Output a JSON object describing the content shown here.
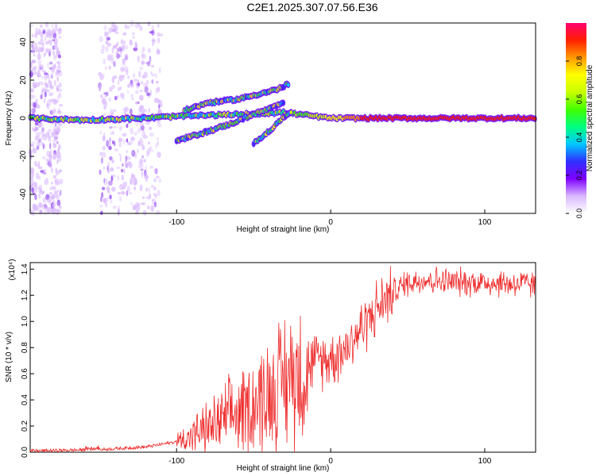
{
  "title": "C2E1.2025.307.07.56.E36",
  "chart_data": [
    {
      "type": "heatmap",
      "name": "spectrogram",
      "xlabel": "Height of straight line (km)",
      "ylabel": "Frequency (Hz)",
      "xlim": [
        -195,
        133
      ],
      "ylim": [
        -50,
        50
      ],
      "xticks": [
        -100,
        0,
        100
      ],
      "yticks": [
        40,
        20,
        0,
        -20,
        -40
      ],
      "colorbar": {
        "label": "Normalized spectral amplitude",
        "range": [
          0,
          1
        ],
        "ticks": [
          "0.0",
          "0.2",
          "0.4",
          "0.6",
          "0.8"
        ],
        "colors": [
          "#ffffff",
          "#d9b8ff",
          "#7f00ff",
          "#3030ff",
          "#00c8ff",
          "#00ff80",
          "#40ff00",
          "#c8ff00",
          "#ffff00",
          "#ff9a00",
          "#ff2000",
          "#ff0070"
        ]
      },
      "traces": [
        {
          "name": "main-carrier",
          "points": [
            [
              -195,
              0
            ],
            [
              -160,
              -1
            ],
            [
              -120,
              0
            ],
            [
              -100,
              1
            ],
            [
              -60,
              2
            ],
            [
              -30,
              3
            ],
            [
              -20,
              2
            ],
            [
              0,
              0
            ],
            [
              50,
              0
            ],
            [
              133,
              0
            ]
          ]
        },
        {
          "name": "upper-branch",
          "points": [
            [
              -95,
              4
            ],
            [
              -80,
              8
            ],
            [
              -60,
              10
            ],
            [
              -45,
              13
            ],
            [
              -35,
              15
            ],
            [
              -27,
              18
            ]
          ]
        },
        {
          "name": "lower-branch",
          "points": [
            [
              -100,
              -12
            ],
            [
              -80,
              -7
            ],
            [
              -65,
              -3
            ],
            [
              -50,
              2
            ],
            [
              -40,
              5
            ],
            [
              -30,
              8
            ]
          ]
        },
        {
          "name": "steep-branch",
          "points": [
            [
              -50,
              -13
            ],
            [
              -40,
              -7
            ],
            [
              -30,
              1
            ],
            [
              -25,
              4
            ]
          ]
        }
      ]
    },
    {
      "type": "line",
      "name": "snr",
      "xlabel": "Height of straight line (km)",
      "ylabel": "SNR (10 * v/v)",
      "yscale_label": "(x10⁴)",
      "xlim": [
        -195,
        133
      ],
      "ylim": [
        0,
        1.45
      ],
      "xticks": [
        -100,
        0,
        100
      ],
      "yticks": [
        "0.0",
        "0.2",
        "0.4",
        "0.6",
        "0.8",
        "1.0",
        "1.2",
        "1.4"
      ],
      "color": "#ee2c2c",
      "envelope": [
        [
          -195,
          0.01
        ],
        [
          -150,
          0.02
        ],
        [
          -120,
          0.04
        ],
        [
          -100,
          0.08
        ],
        [
          -80,
          0.18
        ],
        [
          -60,
          0.3
        ],
        [
          -40,
          0.45
        ],
        [
          -25,
          0.6
        ],
        [
          -10,
          0.7
        ],
        [
          0,
          0.72
        ],
        [
          10,
          0.8
        ],
        [
          20,
          0.95
        ],
        [
          30,
          1.1
        ],
        [
          40,
          1.22
        ],
        [
          50,
          1.3
        ],
        [
          60,
          1.32
        ],
        [
          80,
          1.3
        ],
        [
          100,
          1.3
        ],
        [
          133,
          1.28
        ]
      ]
    }
  ]
}
